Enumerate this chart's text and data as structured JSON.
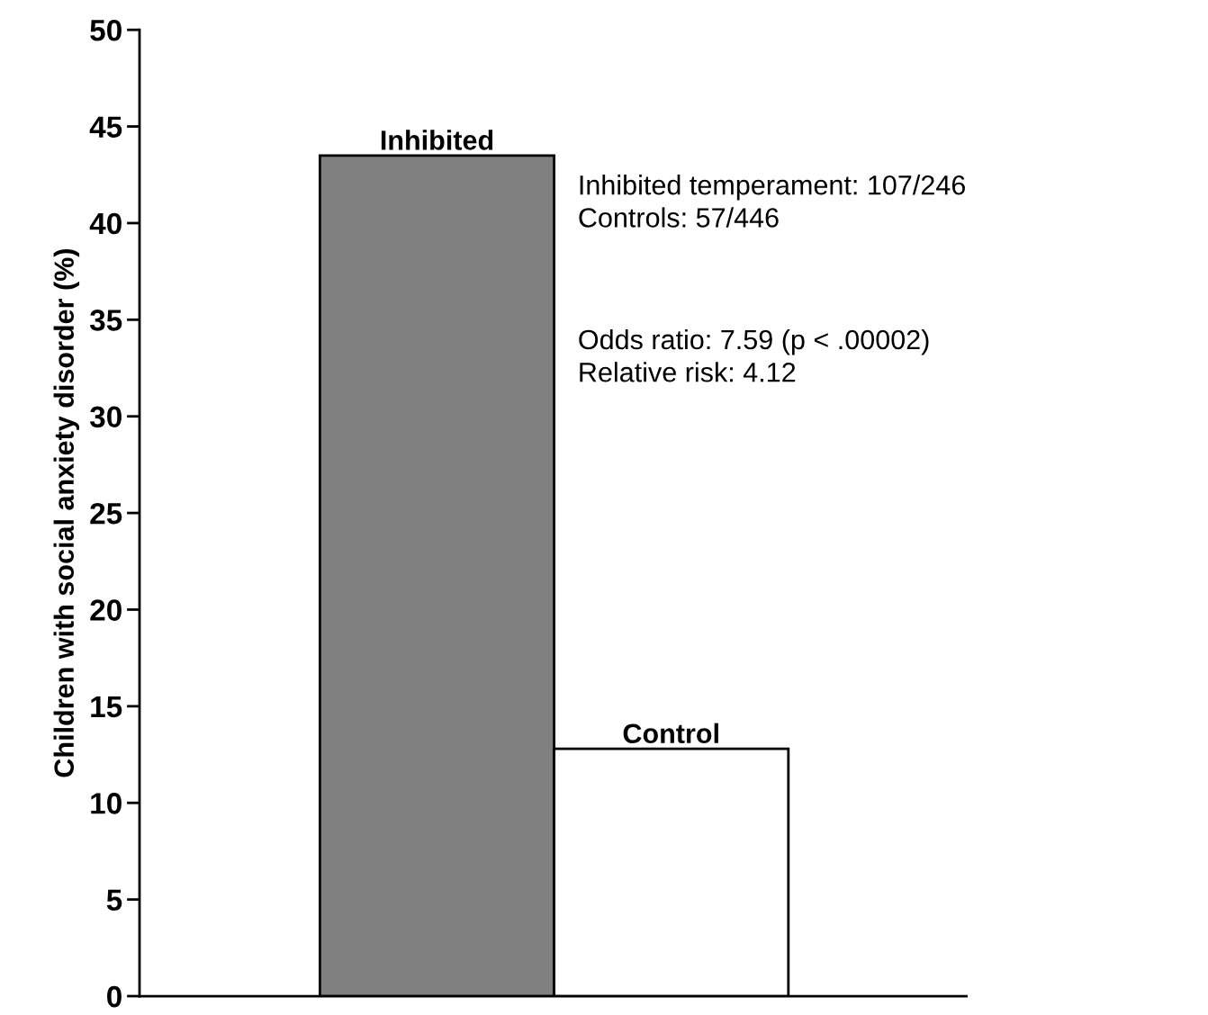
{
  "chart_data": {
    "type": "bar",
    "categories": [
      "Inhibited",
      "Control"
    ],
    "values": [
      43.5,
      12.8
    ],
    "colors": [
      "#808080",
      "#ffffff"
    ],
    "ylabel": "Children with social anxiety disorder (%)",
    "ylim": [
      0,
      50
    ],
    "yticks": [
      0,
      5,
      10,
      15,
      20,
      25,
      30,
      35,
      40,
      45,
      50
    ],
    "tick_labels": "y",
    "annotations": [
      "Inhibited temperament: 107/246\nControls: 57/446",
      "Odds ratio: 7.59 (p < .00002)\nRelative risk: 4.12"
    ]
  }
}
